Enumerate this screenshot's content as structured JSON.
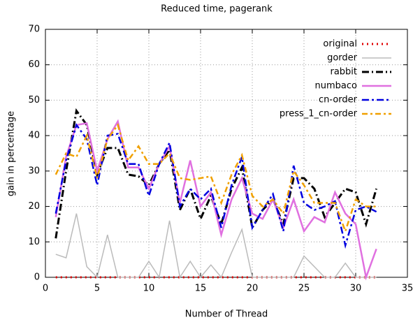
{
  "chart_data": {
    "type": "line",
    "title": "Reduced time, pagerank",
    "x_label": "Number of Thread",
    "y_label": "gain in percentage",
    "x": [
      1,
      2,
      3,
      4,
      5,
      6,
      7,
      8,
      9,
      10,
      11,
      12,
      13,
      14,
      15,
      16,
      17,
      18,
      19,
      20,
      21,
      22,
      23,
      24,
      25,
      26,
      27,
      28,
      29,
      30,
      31,
      32
    ],
    "xlim": [
      0,
      35
    ],
    "xticks": [
      0,
      5,
      10,
      15,
      20,
      25,
      30,
      35
    ],
    "ylim": [
      0,
      70
    ],
    "yticks": [
      0,
      10,
      20,
      30,
      40,
      50,
      60,
      70
    ],
    "grid": true,
    "legend": "top-right",
    "series": [
      {
        "name": "original",
        "color": "#e00000",
        "dash": "2 5",
        "width": 3,
        "values": [
          0,
          0,
          0,
          0,
          0,
          0,
          0,
          0,
          0,
          0,
          0,
          0,
          0,
          0,
          0,
          0,
          0,
          0,
          0,
          0,
          0,
          0,
          0,
          0,
          0,
          0,
          0,
          0,
          0,
          0,
          0,
          0
        ]
      },
      {
        "name": "gorder",
        "color": "#bbbbbb",
        "dash": "none",
        "width": 1.5,
        "values": [
          6.5,
          5.5,
          18,
          3,
          0,
          12,
          0,
          0,
          0,
          4.5,
          0,
          16,
          0,
          4.5,
          0,
          3.5,
          0,
          7,
          13.5,
          0,
          0,
          0,
          0,
          0,
          6,
          3,
          0,
          0,
          4,
          0,
          0,
          0
        ]
      },
      {
        "name": "rabbit",
        "color": "#000000",
        "dash": "10 4 2 4",
        "width": 3,
        "values": [
          11,
          30,
          47,
          43,
          29,
          36.5,
          36.5,
          29,
          28.5,
          26,
          32,
          36,
          19,
          25,
          16.5,
          23,
          15,
          25,
          31,
          14,
          19,
          22,
          15,
          28,
          28,
          25,
          17,
          21,
          25,
          24,
          15,
          25
        ]
      },
      {
        "name": "numbaco",
        "color": "#e070e0",
        "dash": "none",
        "width": 2.5,
        "values": [
          17,
          34,
          43,
          43.5,
          30,
          39,
          44,
          31,
          31,
          25,
          32,
          37,
          21,
          33,
          20,
          24,
          12,
          22,
          28,
          18,
          16.5,
          22,
          14,
          22,
          13,
          17,
          15.5,
          24,
          18,
          15,
          0,
          8
        ]
      },
      {
        "name": "cn-order",
        "color": "#0000e0",
        "dash": "10 4 3 4",
        "width": 2.5,
        "values": [
          18,
          33,
          43,
          39,
          26,
          40,
          40.5,
          32,
          32,
          23,
          32,
          38,
          20,
          25,
          22,
          25,
          14,
          26,
          34,
          14,
          19,
          23.5,
          13,
          31.5,
          21,
          19,
          20,
          21.5,
          9,
          19,
          20,
          18.5
        ]
      },
      {
        "name": "press_1_cn-order",
        "color": "#f0a000",
        "dash": "8 4 3 4",
        "width": 2.5,
        "values": [
          29,
          35,
          34,
          40,
          28,
          39,
          43,
          33,
          37,
          32,
          32,
          35,
          28,
          27.5,
          28,
          28.5,
          21,
          29,
          34.5,
          23,
          20,
          22,
          18,
          30,
          26,
          21,
          21,
          21,
          13,
          22,
          20,
          20
        ]
      }
    ]
  }
}
